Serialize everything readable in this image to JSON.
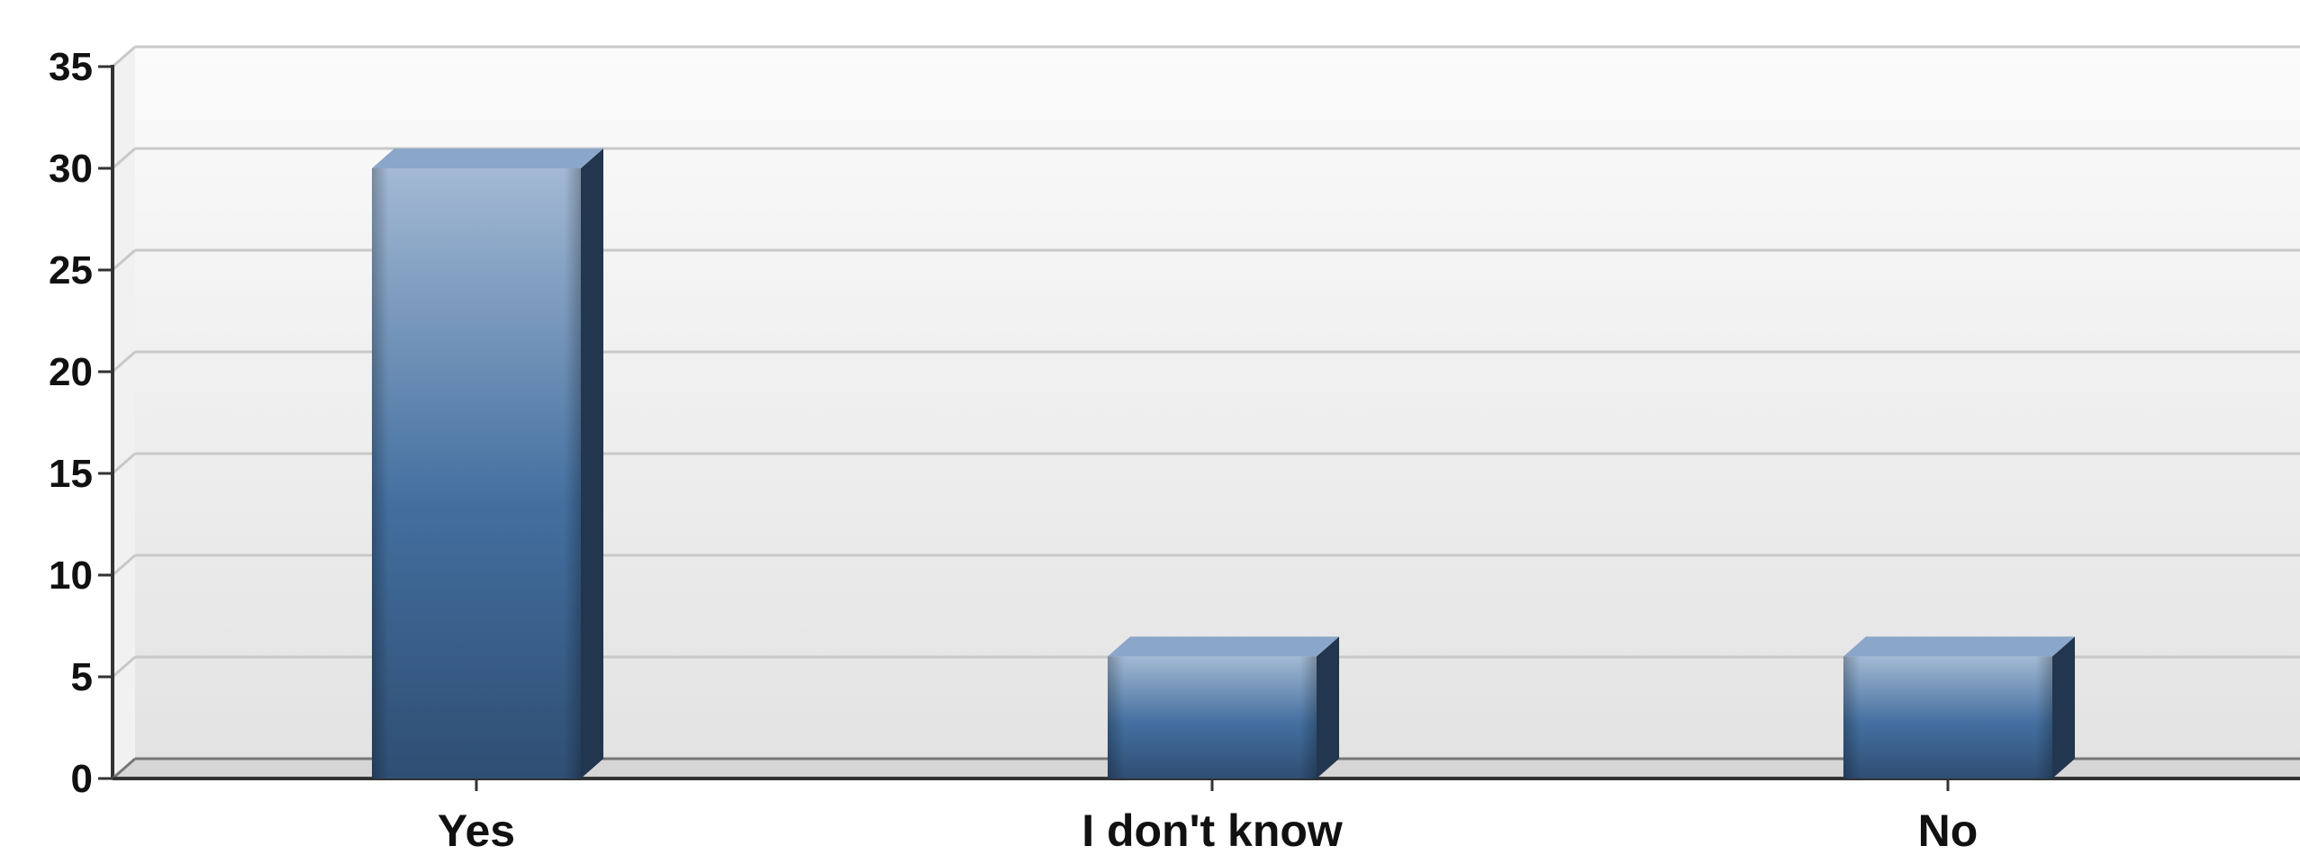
{
  "chart_data": {
    "type": "bar",
    "categories": [
      "Yes",
      "I don't know",
      "No"
    ],
    "values": [
      30,
      6,
      6
    ],
    "ylim": [
      0,
      35
    ],
    "yticks": [
      0,
      5,
      10,
      15,
      20,
      25,
      30,
      35
    ],
    "grid": true,
    "legend": "none",
    "style": "3d-gradient-bars",
    "colors": {
      "bar_top": "#8aa6c8",
      "bar_front_light": "#a3b9d4",
      "bar_front_mid": "#436f9f",
      "bar_front_dark": "#2f4e73",
      "bar_side": "#22364f",
      "plot_bg_top": "#fbfbfb",
      "plot_bg_bottom": "#e3e3e3",
      "gridline": "#c8c8c8",
      "axis": "#333333"
    }
  }
}
